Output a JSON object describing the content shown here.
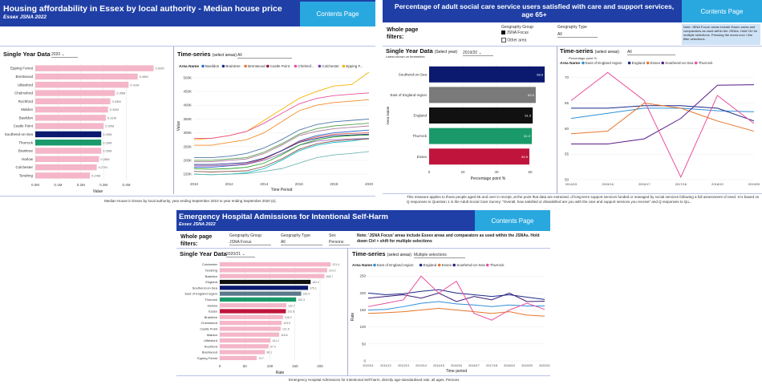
{
  "colors": {
    "banner": "#1f3fa6",
    "button": "#29a8e0",
    "pink": "#f4b6c8",
    "navy": "#0b1a6e",
    "green": "#1a9a6a",
    "crimson": "#c0143c",
    "black": "#111111",
    "gray": "#7a7a7a",
    "slate": "#5a7a8a"
  },
  "panel1": {
    "title": "Housing affordability in Essex by local authority - Median house price",
    "subtitle": "Essex JSNA 2022",
    "contents_label": "Contents Page",
    "single_label": "Single Year Data",
    "year_value": "2020",
    "ts_label": "Time-series",
    "ts_hint": "(select areas)",
    "ts_select": "All",
    "area_name_label": "Area Name",
    "legend": [
      "Basildon",
      "Braintree",
      "Brentwood",
      "Castle Point",
      "Chelmsf...",
      "Colchester",
      "Epping F..."
    ],
    "xaxis_label": "Value",
    "ts_xlabel": "Time Period",
    "ts_ylabel": "Value",
    "footnote": "Median House in Essex by local authority, year ending September 2010 to year ending September 2020 (£).",
    "chart_data": {
      "type": "bar",
      "title": "Single Year Data",
      "categories": [
        "Epping Forest",
        "Brentwood",
        "Uttlesford",
        "Chelmsford",
        "Rochford",
        "Maldon",
        "Basildon",
        "Castle Point",
        "Southend-on-Sea",
        "Thurrock",
        "Braintree",
        "Harlow",
        "Colchester",
        "Tendring"
      ],
      "values": [
        0.52,
        0.45,
        0.41,
        0.35,
        0.33,
        0.32,
        0.31,
        0.3,
        0.29,
        0.29,
        0.29,
        0.28,
        0.27,
        0.24
      ],
      "data_labels": [
        "0.52M",
        "0.45M",
        "0.41M",
        "0.35M",
        "0.33M",
        "0.32M",
        "0.31M",
        "0.30M",
        "0.29M",
        "0.29M",
        "0.29M",
        "0.28M",
        "0.27M",
        "0.24M"
      ],
      "xticks": [
        "0.0M",
        "0.1M",
        "0.2M",
        "0.3M",
        "0.4M"
      ],
      "xlim": [
        0,
        0.55
      ],
      "xlabel": "Value",
      "highlight": {
        "Southend-on-Sea": "navy",
        "Thurrock": "green"
      }
    },
    "ts_chart": {
      "type": "line",
      "x": [
        "2010",
        "2011",
        "2012",
        "2013",
        "2014",
        "2015",
        "2016",
        "2017",
        "2018",
        "2019",
        "2020"
      ],
      "xticks": [
        "2010",
        "2012",
        "2014",
        "2016",
        "2018",
        "2020"
      ],
      "yticks": [
        "150K",
        "200K",
        "250K",
        "300K",
        "350K",
        "400K",
        "450K",
        "500K"
      ],
      "ylim": [
        130,
        520
      ],
      "series": [
        {
          "name": "Epping Forest",
          "color": "#f4b400",
          "values": [
            275,
            280,
            290,
            305,
            345,
            385,
            425,
            450,
            470,
            475,
            520
          ]
        },
        {
          "name": "Brentwood",
          "color": "#e94e9a",
          "values": [
            280,
            280,
            290,
            305,
            335,
            370,
            405,
            425,
            435,
            440,
            445
          ]
        },
        {
          "name": "Uttlesford",
          "color": "#f28e2b",
          "values": [
            255,
            255,
            265,
            275,
            300,
            340,
            380,
            400,
            410,
            415,
            420
          ]
        },
        {
          "name": "Chelmsford",
          "color": "#4e79a7",
          "values": [
            210,
            210,
            215,
            225,
            245,
            275,
            310,
            330,
            340,
            345,
            350
          ]
        },
        {
          "name": "Rochford",
          "color": "#59a14f",
          "values": [
            200,
            200,
            205,
            210,
            230,
            260,
            295,
            315,
            325,
            330,
            335
          ]
        },
        {
          "name": "Maldon",
          "color": "#b07aa1",
          "values": [
            195,
            195,
            200,
            205,
            225,
            255,
            290,
            305,
            315,
            320,
            325
          ]
        },
        {
          "name": "Basildon",
          "color": "#2f6dd0",
          "values": [
            175,
            175,
            180,
            185,
            205,
            235,
            270,
            290,
            300,
            305,
            310
          ]
        },
        {
          "name": "Castle Point",
          "color": "#e15759",
          "values": [
            180,
            180,
            182,
            188,
            205,
            235,
            268,
            285,
            295,
            298,
            300
          ]
        },
        {
          "name": "Braintree",
          "color": "#1b2a8a",
          "values": [
            185,
            185,
            188,
            192,
            208,
            235,
            265,
            280,
            290,
            292,
            295
          ]
        },
        {
          "name": "Colchester",
          "color": "#9c6fbf",
          "values": [
            180,
            180,
            182,
            186,
            200,
            225,
            255,
            270,
            275,
            278,
            280
          ]
        },
        {
          "name": "Southend-on-Sea",
          "color": "#2ca02c",
          "values": [
            170,
            168,
            170,
            175,
            190,
            220,
            255,
            275,
            285,
            290,
            292
          ]
        },
        {
          "name": "Thurrock",
          "color": "#17becf",
          "values": [
            150,
            148,
            150,
            155,
            170,
            200,
            235,
            255,
            265,
            270,
            280
          ]
        },
        {
          "name": "Harlow",
          "color": "#8c564b",
          "values": [
            160,
            158,
            160,
            162,
            178,
            205,
            240,
            260,
            270,
            275,
            278
          ]
        },
        {
          "name": "Tendring",
          "color": "#76b7b2",
          "values": [
            150,
            148,
            150,
            152,
            160,
            170,
            190,
            210,
            220,
            225,
            232
          ]
        }
      ]
    }
  },
  "panel2": {
    "title": "Percentage of adult social care service users satisfied with care and support services, age 65+",
    "contents_label": "Contents Page",
    "whole_label": "Whole page filters:",
    "geo_group_label": "Geography Group",
    "geo_group_options": [
      "JSNA Focus",
      "Other area"
    ],
    "geo_type_label": "Geography Type",
    "geo_type_value": "All",
    "note": "Note: JSNA Focus' areas include Essex areas and comparators as used within the JSNAs. Hold Ctrl for multiple selections. Pressing the arrow icon / line filter selections.",
    "single_label": "Single Year Data",
    "single_hint": "(Select year)",
    "single_sub": "Latest shown on timeseries",
    "year_value": "2019/20",
    "axis_label": "Percentage point %",
    "area_label": "Area Name",
    "ts_label": "Time-series",
    "ts_hint": "(select areas)",
    "ts_select": "All",
    "ts_ylabel": "Percentage point %",
    "legend_label": "Area Name",
    "legend": [
      "East of England region",
      "England",
      "Essex",
      "Southend-on-Sea",
      "Thurrock"
    ],
    "footnote": "This measure applies to those people aged 65 and over in receipt, at the point that data are extracted, of long-term support services funded or managed by social services following a full assessment of need. It is based on Q responses to Question 1 in the Adult Social Care Survey: \"Overall, how satisfied or dissatisfied are you with the care and support services you receive\" and Q responses to Qu...",
    "chart_data": {
      "type": "bar",
      "categories": [
        "Southend-on-Sea",
        "East of England region",
        "England",
        "Thurrock",
        "Essex"
      ],
      "values": [
        68.6,
        63.3,
        61.5,
        61.0,
        59.5
      ],
      "data_labels": [
        "68.6",
        "63.3",
        "61.5",
        "61.0",
        "59.5"
      ],
      "colors": [
        "navy",
        "gray",
        "black",
        "green",
        "crimson"
      ],
      "xticks": [
        "0",
        "20",
        "40",
        "60"
      ],
      "xlim": [
        0,
        70
      ]
    },
    "ts_chart": {
      "type": "line",
      "x": [
        "2014/15",
        "2015/16",
        "2016/17",
        "2017/18",
        "2018/19",
        "2019/20"
      ],
      "yticks": [
        "50",
        "55",
        "60",
        "65",
        "70"
      ],
      "ylim": [
        50,
        72
      ],
      "series": [
        {
          "name": "East of England region",
          "color": "#2f8fd8",
          "values": [
            62.0,
            63.0,
            64.0,
            64.0,
            63.5,
            63.3
          ]
        },
        {
          "name": "England",
          "color": "#1b2a8a",
          "values": [
            64.0,
            64.0,
            64.5,
            64.5,
            64.0,
            61.5
          ]
        },
        {
          "name": "Essex",
          "color": "#e8762b",
          "values": [
            59.0,
            59.5,
            65.0,
            64.0,
            61.5,
            59.5
          ]
        },
        {
          "name": "Southend-on-Sea",
          "color": "#5a1a8a",
          "values": [
            57.0,
            57.0,
            58.0,
            62.0,
            68.5,
            68.6
          ]
        },
        {
          "name": "Thurrock",
          "color": "#e94e9a",
          "values": [
            65.5,
            71.0,
            65.5,
            50.5,
            66.5,
            61.0
          ]
        }
      ]
    }
  },
  "panel3": {
    "title": "Emergency Hospital Admissions for Intentional Self-Harm",
    "subtitle": "Essex JSNA 2022",
    "contents_label": "Contents Page",
    "whole_label": "Whole page filters:",
    "geo_group_label": "Geography Group",
    "geo_group_value": "JSNA Focus",
    "geo_type_label": "Geography Type",
    "geo_type_value": "All",
    "sex_label": "Sex",
    "sex_value": "Persons",
    "note": "Note: 'JSNA Focus' areas include Essex areas and comparators as used within the JSNAs. Hold down Ctrl + shift for multiple selections",
    "single_label": "Single Year Data",
    "year_value": "2020/21",
    "xaxis_label": "Rate",
    "ts_label": "Time-series",
    "ts_hint": "(select areas)",
    "ts_select": "Multiple selections",
    "ts_xlabel": "Time period",
    "ts_ylabel": "Rate",
    "legend_label": "Area Name",
    "legend": [
      "East of England region",
      "England",
      "Essex",
      "Southend-on-Sea",
      "Thurrock"
    ],
    "footnote": "Emergency Hospital Admissions for Intentional Self-harm, directly age-standardised rate, all ages, Persons",
    "chart_data": {
      "type": "bar",
      "categories": [
        "Colchester",
        "Tendring",
        "Basildon",
        "England",
        "Southend-on-Sea",
        "East of England region",
        "Thurrock",
        "Harlow",
        "Essex",
        "Braintree",
        "Chelmsford",
        "Castle Point",
        "Maldon",
        "Uttlesford",
        "Rochford",
        "Brentwood",
        "Epping Forest"
      ],
      "values": [
        221.4,
        214.2,
        208.7,
        181.2,
        176.1,
        162.4,
        152.3,
        132.7,
        131.8,
        126.2,
        123.5,
        121.5,
        118.6,
        101.2,
        97.4,
        90.1,
        73.7
      ],
      "data_labels": [
        "221.4",
        "214.2",
        "208.7",
        "181.2",
        "176.1",
        "162.4",
        "152.3",
        "132.7",
        "131.8",
        "126.2",
        "123.5",
        "121.5",
        "118.6",
        "101.2",
        "97.4",
        "90.1",
        "73.7"
      ],
      "xticks": [
        "0",
        "50",
        "100",
        "150",
        "200"
      ],
      "xlim": [
        0,
        240
      ],
      "highlight": {
        "England": "black",
        "Southend-on-Sea": "navy",
        "Thurrock": "green",
        "Essex": "crimson",
        "East of England region": "slate"
      }
    },
    "ts_chart": {
      "type": "line",
      "x": [
        "2010/11",
        "2011/12",
        "2012/13",
        "2013/14",
        "2014/15",
        "2015/16",
        "2016/17",
        "2017/18",
        "2018/19",
        "2019/20",
        "2020/21"
      ],
      "yticks": [
        "0",
        "50",
        "100",
        "150",
        "200",
        "250"
      ],
      "ylim": [
        0,
        260
      ],
      "series": [
        {
          "name": "East of England region",
          "color": "#2f8fd8",
          "values": [
            150,
            152,
            160,
            170,
            175,
            168,
            165,
            160,
            165,
            162,
            162
          ]
        },
        {
          "name": "England",
          "color": "#1b2a8a",
          "values": [
            200,
            195,
            198,
            205,
            210,
            200,
            195,
            190,
            195,
            188,
            181
          ]
        },
        {
          "name": "Essex",
          "color": "#e8762b",
          "values": [
            140,
            142,
            145,
            150,
            155,
            150,
            145,
            140,
            145,
            135,
            132
          ]
        },
        {
          "name": "Southend-on-Sea",
          "color": "#3a1a7a",
          "values": [
            185,
            190,
            195,
            185,
            200,
            175,
            190,
            180,
            200,
            175,
            176
          ]
        },
        {
          "name": "Thurrock",
          "color": "#e94e9a",
          "values": [
            160,
            170,
            180,
            250,
            200,
            235,
            140,
            120,
            150,
            170,
            152
          ]
        }
      ]
    }
  }
}
